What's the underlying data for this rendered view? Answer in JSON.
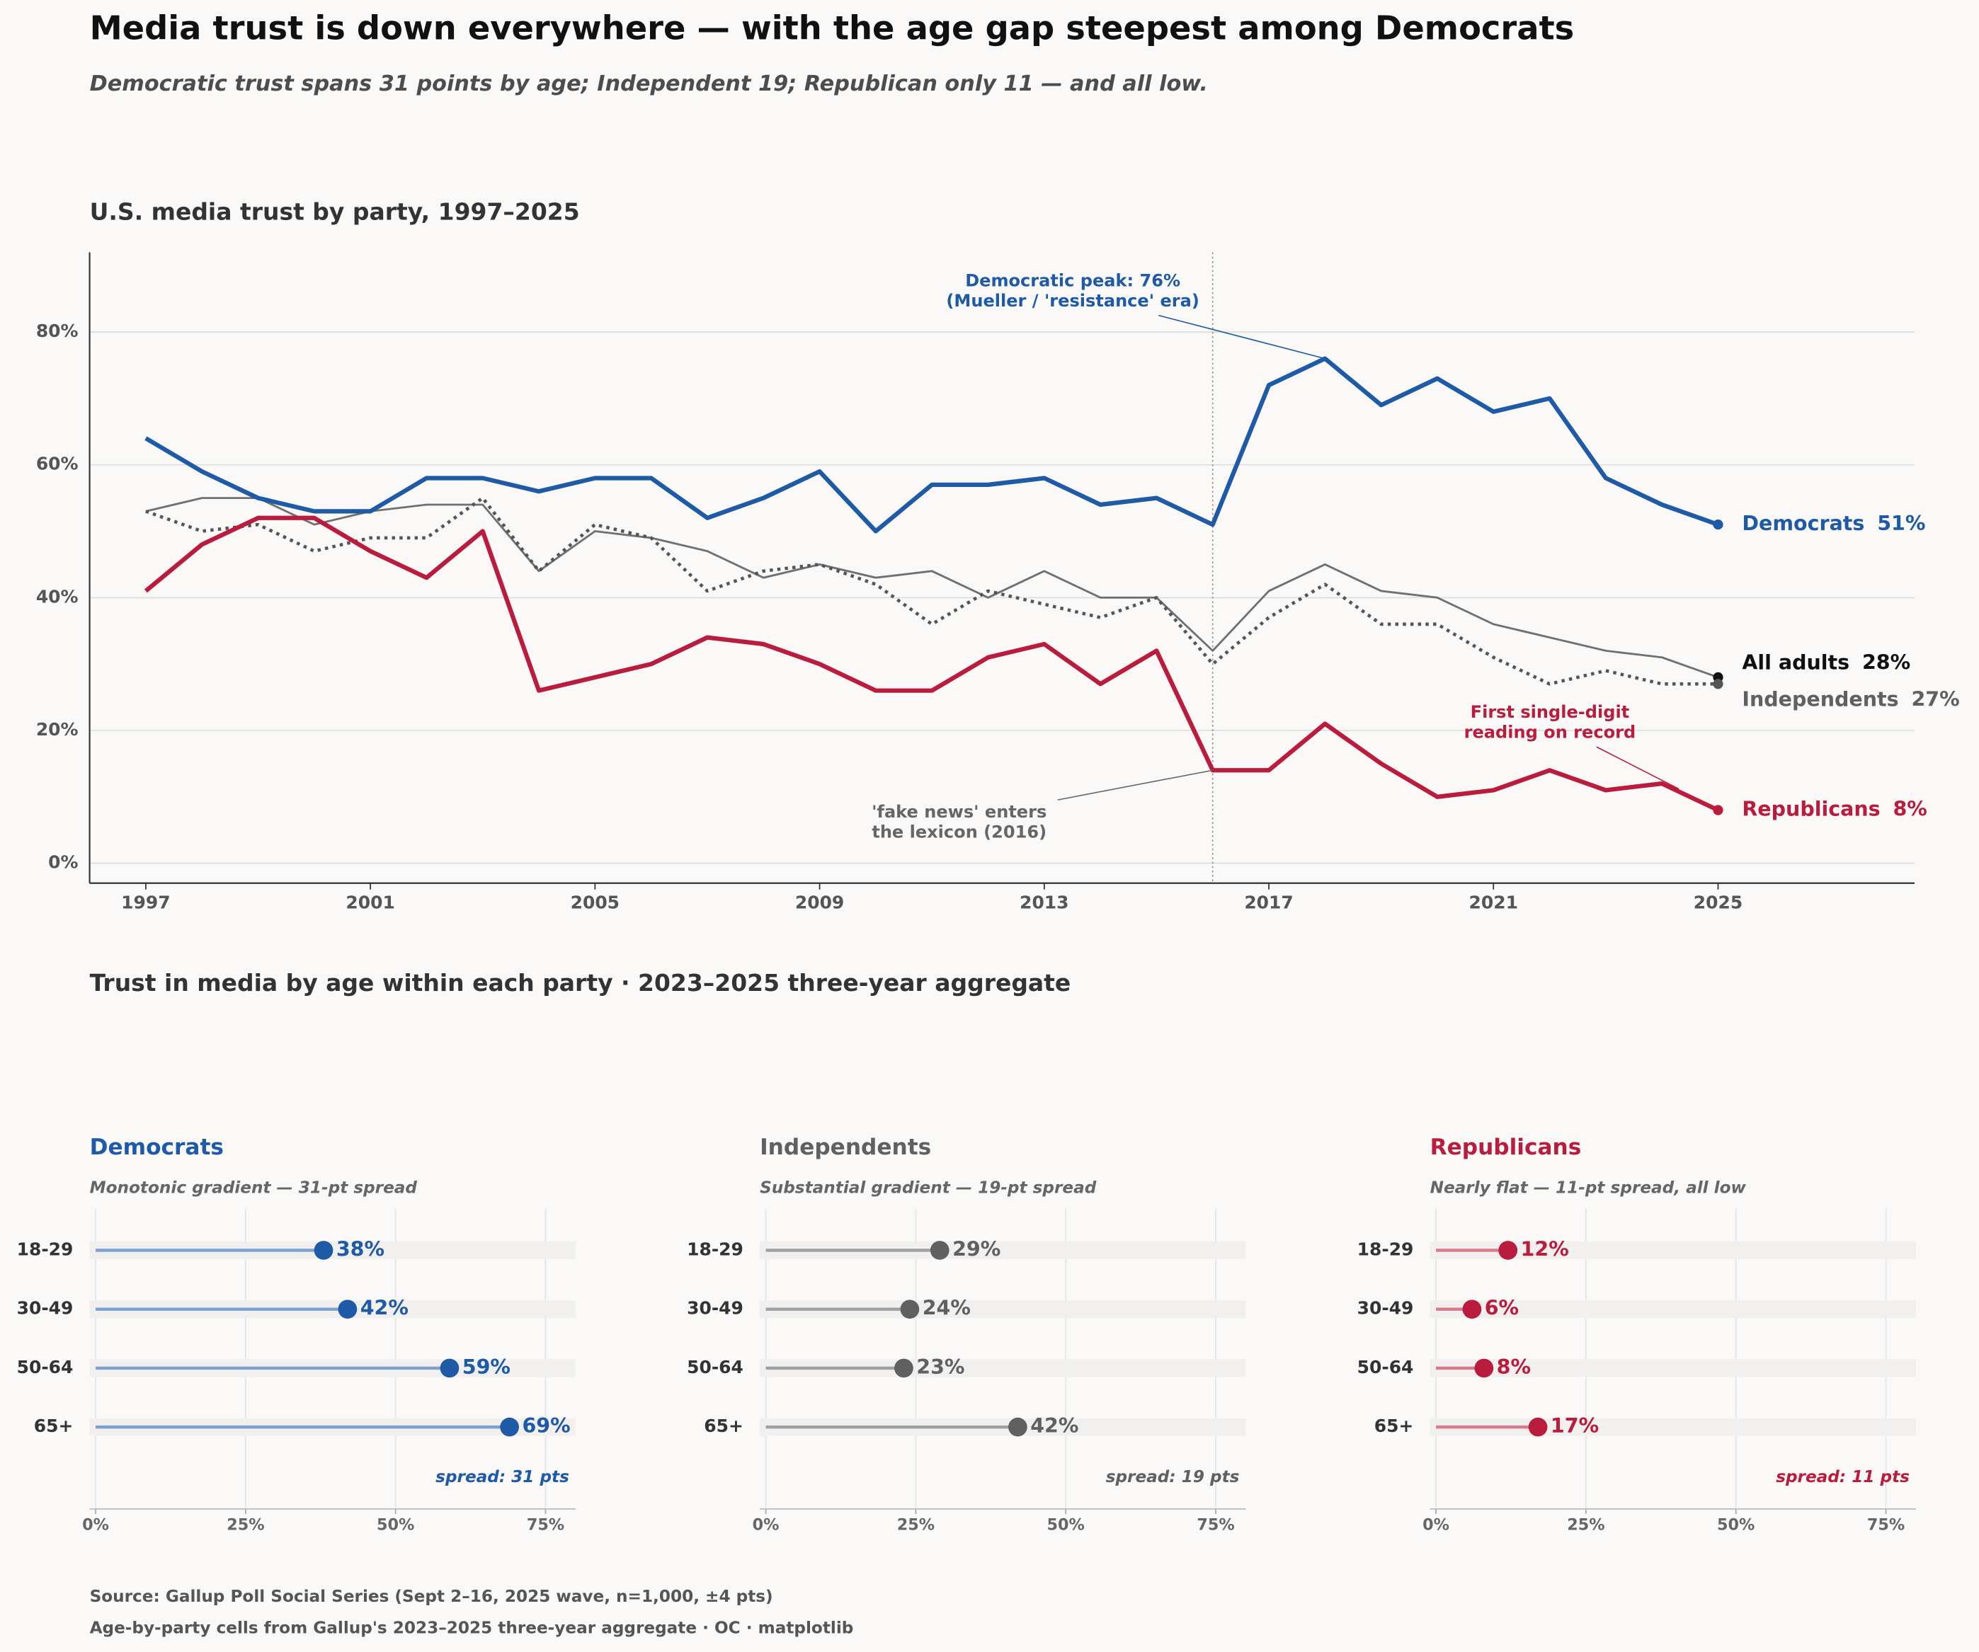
{
  "title": "Media trust is down everywhere — with the age gap steepest among Democrats",
  "subtitle": "Democratic trust spans 31 points by age; Independent 19; Republican only 11 — and all low.",
  "section_title": "Trust in media by age within each party  ·  2023–2025 three-year aggregate",
  "footer": [
    "Source: Gallup Poll Social Series (Sept 2–16, 2025 wave, n=1,000, ±4 pts)",
    "Age-by-party cells from Gallup's 2023–2025 three-year aggregate  ·  OC  ·  matplotlib"
  ],
  "chart_data": [
    {
      "type": "line",
      "title": "U.S. media trust by party, 1997–2025",
      "x": [
        1997,
        1998,
        1999,
        2000,
        2001,
        2002,
        2003,
        2004,
        2005,
        2006,
        2007,
        2008,
        2009,
        2010,
        2011,
        2012,
        2013,
        2014,
        2015,
        2016,
        2017,
        2018,
        2019,
        2020,
        2021,
        2022,
        2023,
        2024,
        2025
      ],
      "series": [
        {
          "name": "Democrats",
          "color": "#1f5aa6",
          "label_color": "#1f5aa6",
          "line_width": 3.5,
          "dashed": false,
          "end_label": "51%",
          "values": [
            64,
            59,
            55,
            53,
            53,
            58,
            58,
            56,
            58,
            58,
            52,
            55,
            59,
            50,
            57,
            57,
            58,
            54,
            55,
            51,
            72,
            76,
            69,
            73,
            68,
            70,
            58,
            54,
            51
          ]
        },
        {
          "name": "Republicans",
          "color": "#b91c3c",
          "label_color": "#b91c3c",
          "line_width": 3.5,
          "dashed": false,
          "end_label": "8%",
          "values": [
            41,
            48,
            52,
            52,
            47,
            43,
            50,
            26,
            28,
            30,
            34,
            33,
            30,
            26,
            26,
            31,
            33,
            27,
            32,
            14,
            14,
            21,
            15,
            10,
            11,
            14,
            11,
            12,
            8
          ]
        },
        {
          "name": "All adults",
          "color": "#707070",
          "label_color": "#111111",
          "line_width": 1.6,
          "dashed": false,
          "end_label": "28%",
          "values": [
            53,
            55,
            55,
            51,
            53,
            54,
            54,
            44,
            50,
            49,
            47,
            43,
            45,
            43,
            44,
            40,
            44,
            40,
            40,
            32,
            41,
            45,
            41,
            40,
            36,
            34,
            32,
            31,
            28
          ]
        },
        {
          "name": "Independents",
          "color": "#555555",
          "label_color": "#606060",
          "line_width": 2.6,
          "dashed": true,
          "end_label": "27%",
          "values": [
            53,
            50,
            51,
            47,
            49,
            49,
            55,
            44,
            51,
            49,
            41,
            44,
            45,
            42,
            36,
            41,
            39,
            37,
            40,
            30,
            37,
            42,
            36,
            36,
            31,
            27,
            29,
            27,
            27
          ]
        }
      ],
      "xlim": [
        1996,
        2028.5
      ],
      "xticks": [
        1997,
        2001,
        2005,
        2009,
        2013,
        2017,
        2021,
        2025
      ],
      "ylim": [
        -3,
        92
      ],
      "yticks": [
        {
          "value": 0,
          "label": "0%"
        },
        {
          "value": 20,
          "label": "20%"
        },
        {
          "value": 40,
          "label": "40%"
        },
        {
          "value": 60,
          "label": "60%"
        },
        {
          "value": 80,
          "label": "80%"
        }
      ],
      "grid": true,
      "vline": 2016,
      "annotations": [
        {
          "lines": [
            "Democratic peak: 76%",
            "(Mueller / 'resistance' era)"
          ],
          "x": 2018,
          "y": 76,
          "color": "#1f5aa6"
        },
        {
          "lines": [
            "'fake news' enters",
            "the lexicon (2016)"
          ],
          "x": 2016,
          "y": 14,
          "color": "#666666"
        },
        {
          "lines": [
            "First single-digit",
            "reading on record"
          ],
          "x": 2024.3,
          "y": 11.2,
          "color": "#b91c3c"
        }
      ]
    },
    {
      "type": "dot",
      "title": "Democrats",
      "subtitle": "Monotonic gradient — 31-pt spread",
      "color": "#1f5aa6",
      "stem_color": "#7ea0d0",
      "categories": [
        "18-29",
        "30-49",
        "50-64",
        "65+"
      ],
      "values": [
        38,
        42,
        59,
        69
      ],
      "value_labels": [
        "38%",
        "42%",
        "59%",
        "69%"
      ],
      "spread_label": "spread: 31 pts",
      "xlim": [
        -1,
        80
      ],
      "xticks": [
        {
          "value": 0,
          "label": "0%"
        },
        {
          "value": 25,
          "label": "25%"
        },
        {
          "value": 50,
          "label": "50%"
        },
        {
          "value": 75,
          "label": "75%"
        }
      ]
    },
    {
      "type": "dot",
      "title": "Independents",
      "subtitle": "Substantial gradient — 19-pt spread",
      "color": "#606060",
      "stem_color": "#a0a0a0",
      "categories": [
        "18-29",
        "30-49",
        "50-64",
        "65+"
      ],
      "values": [
        29,
        24,
        23,
        42
      ],
      "value_labels": [
        "29%",
        "24%",
        "23%",
        "42%"
      ],
      "spread_label": "spread: 19 pts",
      "xlim": [
        -1,
        80
      ],
      "xticks": [
        {
          "value": 0,
          "label": "0%"
        },
        {
          "value": 25,
          "label": "25%"
        },
        {
          "value": 50,
          "label": "50%"
        },
        {
          "value": 75,
          "label": "75%"
        }
      ]
    },
    {
      "type": "dot",
      "title": "Republicans",
      "subtitle": "Nearly flat — 11-pt spread, all low",
      "color": "#b91c3c",
      "stem_color": "#d77a8c",
      "categories": [
        "18-29",
        "30-49",
        "50-64",
        "65+"
      ],
      "values": [
        12,
        6,
        8,
        17
      ],
      "value_labels": [
        "12%",
        "6%",
        "8%",
        "17%"
      ],
      "spread_label": "spread: 11 pts",
      "xlim": [
        -1,
        80
      ],
      "xticks": [
        {
          "value": 0,
          "label": "0%"
        },
        {
          "value": 25,
          "label": "25%"
        },
        {
          "value": 50,
          "label": "50%"
        },
        {
          "value": 75,
          "label": "75%"
        }
      ]
    }
  ]
}
